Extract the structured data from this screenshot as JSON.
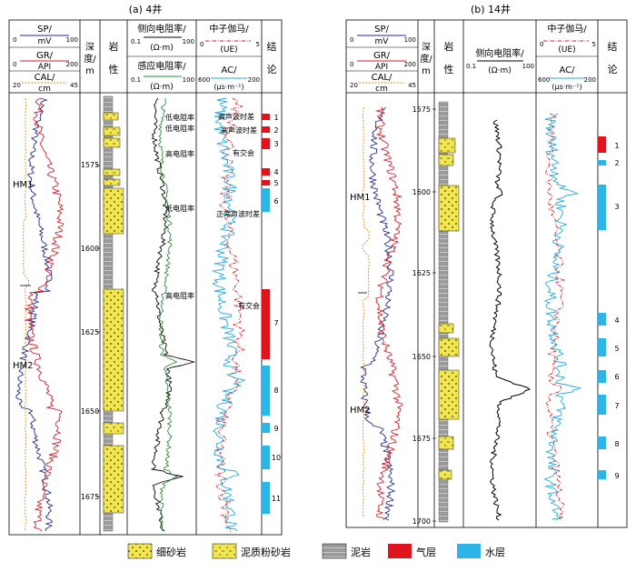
{
  "panels": [
    {
      "id": "a",
      "title": "(a)  4井",
      "headers": {
        "sp": {
          "label": "SP/",
          "unit": "mV",
          "min": "0",
          "max": "100",
          "color": "#1f2b8a"
        },
        "gr": {
          "label": "GR/",
          "unit": "API",
          "min": "0",
          "max": "200",
          "color": "#d0202a"
        },
        "cal": {
          "label": "CAL/",
          "unit": "cm",
          "min": "20",
          "max": "45",
          "color": "#e08a1c"
        },
        "depth": {
          "label1": "深",
          "label2": "度/",
          "label3": "m"
        },
        "lith": {
          "label1": "岩",
          "label2": "性"
        },
        "rlat": {
          "label": "侧向电阻率/",
          "unit": "(Ω·m)",
          "min": "0.1",
          "max": "100",
          "color": "#000000"
        },
        "rind": {
          "label": "感应电阻率/",
          "unit": "(Ω·m)",
          "min": "0.1",
          "max": "100",
          "color": "#2e8b3a"
        },
        "cn": {
          "label": "中子伽马/",
          "unit": "(UE)",
          "min": "0",
          "max": "5",
          "color": "#d0202a"
        },
        "ac": {
          "label": "AC/",
          "unit": "(μs·m⁻¹)",
          "min": "600",
          "max": "200",
          "color": "#2aa8dc"
        },
        "result": {
          "label1": "结",
          "label2": "论"
        }
      },
      "depth_ticks": [
        "1575",
        "1600",
        "1625",
        "1650",
        "1675"
      ],
      "markers": [
        "HM1",
        "HM2"
      ],
      "annotations_res": [
        "低电阻率",
        "低电阻率",
        "高电阻率",
        "低电阻率",
        "高电阻率"
      ],
      "annotations_ac": [
        "高声波时差",
        "高声波时差",
        "有交会",
        "正常声波时差",
        "有交会"
      ],
      "result_labels": [
        "1",
        "2",
        "3",
        "4",
        "5",
        "6",
        "7",
        "8",
        "9",
        "10",
        "11"
      ]
    },
    {
      "id": "b",
      "title": "(b)  14井",
      "headers": {
        "sp": {
          "label": "SP/",
          "unit": "mV",
          "min": "0",
          "max": "100",
          "color": "#1f2b8a"
        },
        "gr": {
          "label": "GR/",
          "unit": "API",
          "min": "0",
          "max": "200",
          "color": "#d0202a"
        },
        "cal": {
          "label": "CAL/",
          "unit": "cm",
          "min": "20",
          "max": "45",
          "color": "#e08a1c"
        },
        "depth": {
          "label1": "深",
          "label2": "度/",
          "label3": "m"
        },
        "lith": {
          "label1": "岩",
          "label2": "性"
        },
        "rlat": {
          "label": "侧向电阻率/",
          "unit": "(Ω·m)",
          "min": "0.1",
          "max": "100",
          "color": "#000000"
        },
        "cn": {
          "label": "中子伽马/",
          "unit": "(UE)",
          "min": "0",
          "max": "5",
          "color": "#d0202a"
        },
        "ac": {
          "label": "AC/",
          "unit": "(μs·m⁻¹)",
          "min": "600",
          "max": "200",
          "color": "#2aa8dc"
        },
        "result": {
          "label1": "结",
          "label2": "论"
        }
      },
      "depth_ticks": [
        "1575",
        "1600",
        "1625",
        "1650",
        "1675",
        "1700"
      ],
      "markers": [
        "HM1",
        "HM2"
      ],
      "result_labels": [
        "1",
        "2",
        "3",
        "4",
        "5",
        "6",
        "7",
        "8",
        "9"
      ]
    }
  ],
  "legend": [
    {
      "label": "细砂岩",
      "kind": "fine-sandstone"
    },
    {
      "label": "泥质粉砂岩",
      "kind": "argillaceous-siltstone"
    },
    {
      "label": "泥岩",
      "kind": "mudstone"
    },
    {
      "label": "气层",
      "kind": "gas-layer",
      "color": "#e0141c"
    },
    {
      "label": "水层",
      "kind": "water-layer",
      "color": "#2db4e8"
    }
  ],
  "colors": {
    "gas": "#e0141c",
    "water": "#2db4e8",
    "sand": "#f2e64a",
    "mud": "#9a9a9a"
  }
}
